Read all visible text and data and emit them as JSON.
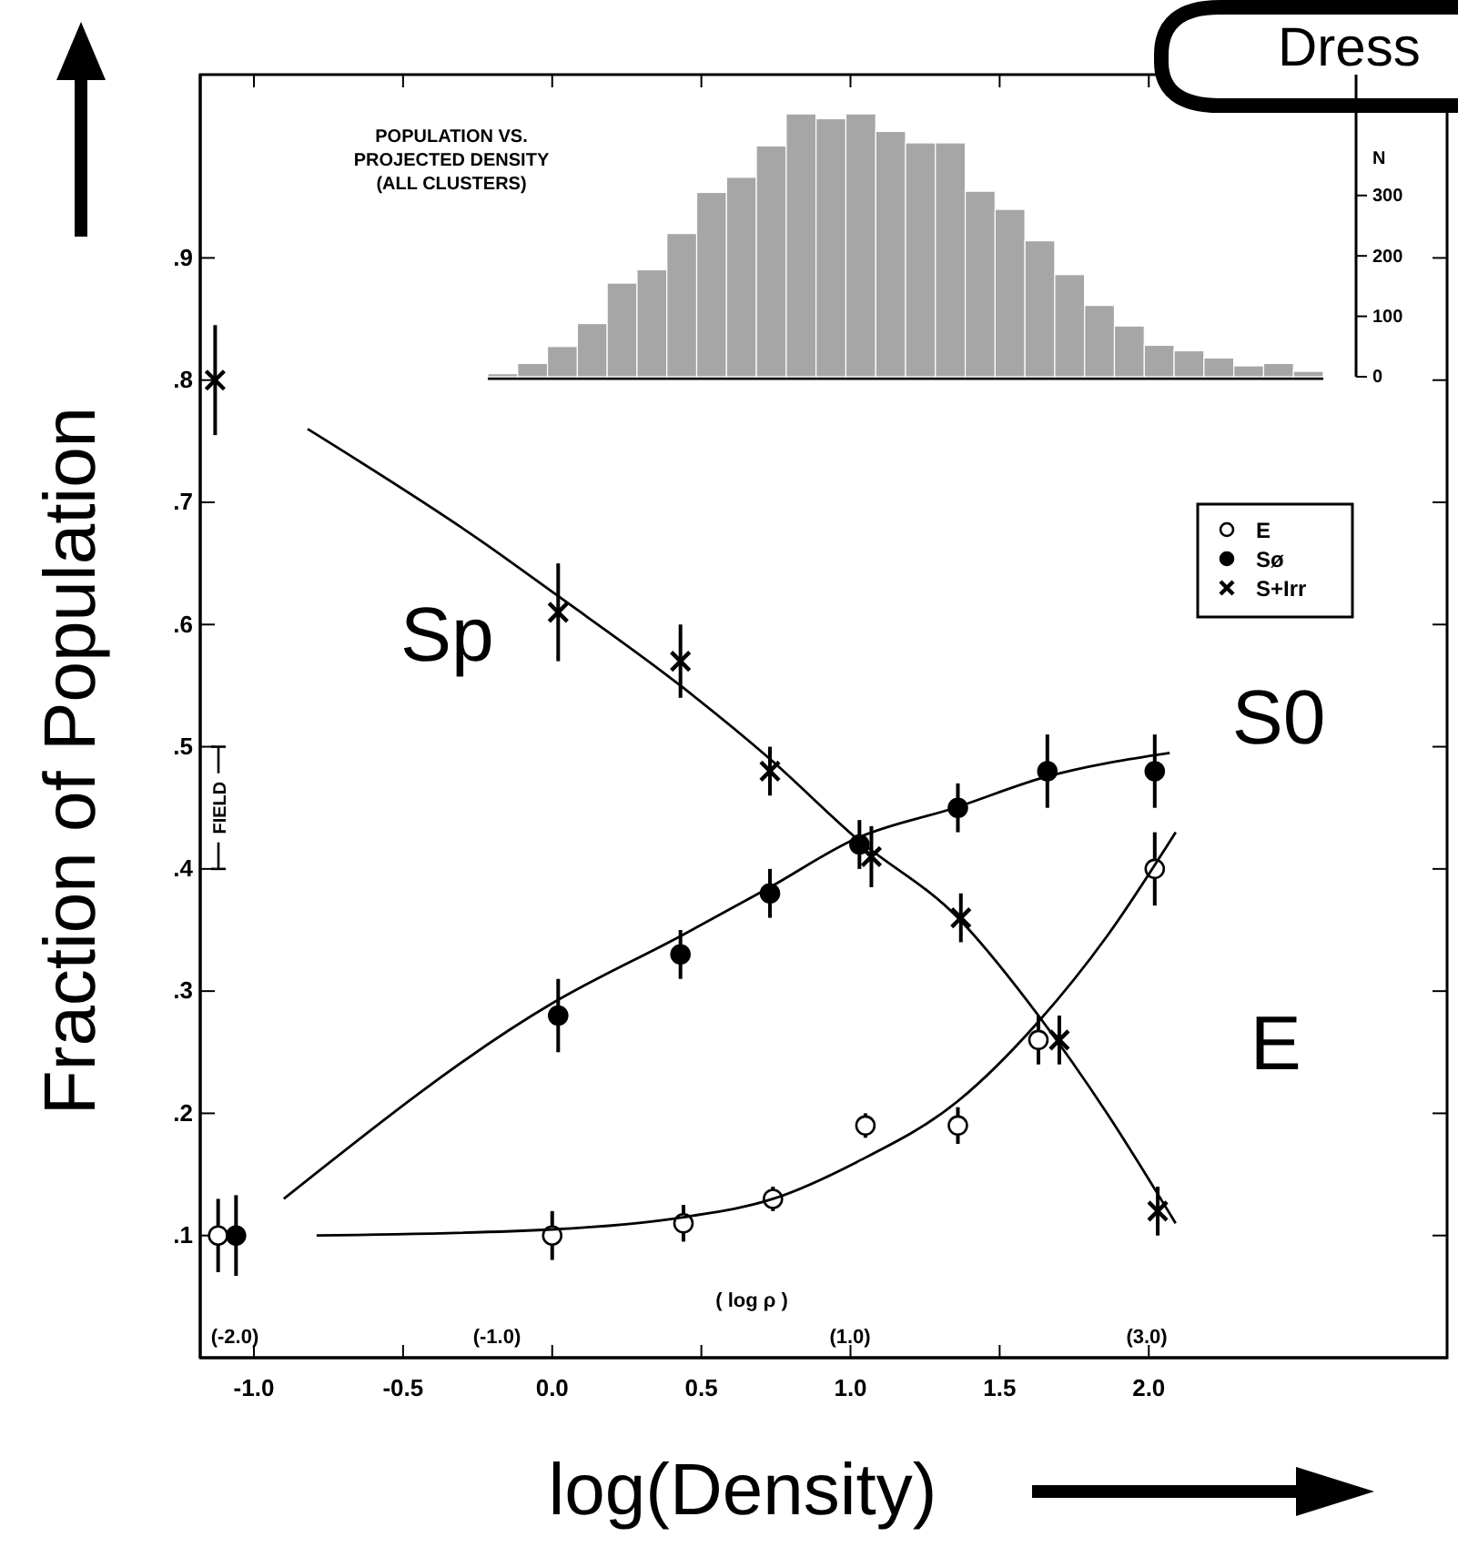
{
  "chart_data": [
    {
      "type": "scatter",
      "xlabel": "log(Density)",
      "ylabel": "Fraction of Population",
      "xlim": [
        -1.18,
        3.0
      ],
      "ylim": [
        0,
        1.05
      ],
      "xticks": [
        {
          "value": -1,
          "label": "-1.0"
        },
        {
          "value": -0.5,
          "label": "-0.5"
        },
        {
          "value": 0,
          "label": "0.0"
        },
        {
          "value": 0.5,
          "label": "0.5"
        },
        {
          "value": 1,
          "label": "1.0"
        },
        {
          "value": 1.5,
          "label": "1.5"
        },
        {
          "value": 2,
          "label": "2.0"
        }
      ],
      "yticks": [
        {
          "value": 0.1,
          "label": ".1"
        },
        {
          "value": 0.2,
          "label": ".2"
        },
        {
          "value": 0.3,
          "label": ".3"
        },
        {
          "value": 0.4,
          "label": ".4"
        },
        {
          "value": 0.5,
          "label": ".5"
        },
        {
          "value": 0.6,
          "label": ".6"
        },
        {
          "value": 0.7,
          "label": ".7"
        },
        {
          "value": 0.8,
          "label": ".8"
        },
        {
          "value": 0.9,
          "label": ".9"
        }
      ],
      "legend": "top right",
      "grid": false,
      "annotations": [
        "FIELD",
        "Dress",
        "( log ρ )",
        "(-2.0)",
        "(-1.0)",
        "(1.0)",
        "(3.0)"
      ],
      "series": [
        {
          "type": "scatter",
          "name": "E",
          "color": "#000000",
          "marker": "circle",
          "x": [
            -1.12,
            0.0,
            0.44,
            0.74,
            1.05,
            1.36,
            1.63,
            2.02
          ],
          "values": [
            0.1,
            0.1,
            0.11,
            0.13,
            0.19,
            0.19,
            0.26,
            0.4
          ],
          "errors": [
            0.03,
            0.02,
            0.015,
            0.01,
            0.01,
            0.015,
            0.02,
            0.03
          ]
        },
        {
          "type": "scatter",
          "name": "Sø",
          "color": "#000000",
          "marker": "circle",
          "x": [
            -1.06,
            0.02,
            0.43,
            0.73,
            1.03,
            1.36,
            1.66,
            2.02
          ],
          "values": [
            0.1,
            0.28,
            0.33,
            0.38,
            0.42,
            0.45,
            0.48,
            0.48
          ],
          "errors": [
            0.033,
            0.03,
            0.02,
            0.02,
            0.02,
            0.02,
            0.03,
            0.03
          ]
        },
        {
          "type": "scatter",
          "name": "S+Irr",
          "color": "#000000",
          "marker": "cross",
          "x": [
            -1.13,
            0.02,
            0.43,
            0.73,
            1.07,
            1.37,
            1.7,
            2.03
          ],
          "values": [
            0.8,
            0.61,
            0.57,
            0.48,
            0.41,
            0.36,
            0.26,
            0.12
          ],
          "errors": [
            0.045,
            0.04,
            0.03,
            0.02,
            0.025,
            0.02,
            0.02,
            0.02
          ]
        },
        {
          "type": "line",
          "name": "Sp",
          "color": "#000000",
          "marker": "none",
          "line_style": "solid",
          "x": [
            -0.82,
            -0.23,
            0.01,
            0.43,
            0.73,
            1.02,
            1.36,
            1.63,
            1.86,
            2.09
          ],
          "values": [
            0.76,
            0.667,
            0.625,
            0.55,
            0.49,
            0.425,
            0.36,
            0.28,
            0.2,
            0.11
          ]
        },
        {
          "type": "line",
          "name": "S0",
          "color": "#000000",
          "marker": "none",
          "line_style": "solid",
          "x": [
            -0.9,
            0.0,
            0.43,
            0.73,
            1.02,
            1.35,
            1.65,
            2.07
          ],
          "values": [
            0.13,
            0.29,
            0.345,
            0.385,
            0.425,
            0.45,
            0.475,
            0.495
          ]
        },
        {
          "type": "line",
          "name": "E",
          "color": "#000000",
          "marker": "none",
          "line_style": "solid",
          "x": [
            -0.79,
            0.0,
            0.44,
            0.74,
            1.02,
            1.36,
            1.63,
            1.86,
            2.09
          ],
          "values": [
            0.1,
            0.105,
            0.115,
            0.13,
            0.16,
            0.21,
            0.275,
            0.345,
            0.43
          ]
        }
      ]
    },
    {
      "type": "bar",
      "title": "POPULATION VS.\nPROJECTED DENSITY\n(ALL CLUSTERS)",
      "ylabel": "N",
      "color": "#a6a6a6",
      "ylim": [
        0,
        500
      ],
      "tick_labels": "y",
      "yticks": [
        0,
        100,
        200,
        300
      ],
      "categories": [
        null,
        null,
        null,
        null,
        null,
        null,
        null,
        null,
        null,
        null,
        null,
        null,
        null,
        null,
        null,
        null,
        null,
        null,
        null,
        null,
        null,
        null,
        null,
        null,
        null,
        null,
        null,
        null
      ],
      "values": [
        5,
        22,
        50,
        88,
        155,
        177,
        237,
        305,
        330,
        382,
        435,
        427,
        435,
        406,
        387,
        387,
        307,
        277,
        225,
        169,
        118,
        84,
        52,
        43,
        31,
        18,
        22,
        9
      ]
    }
  ]
}
